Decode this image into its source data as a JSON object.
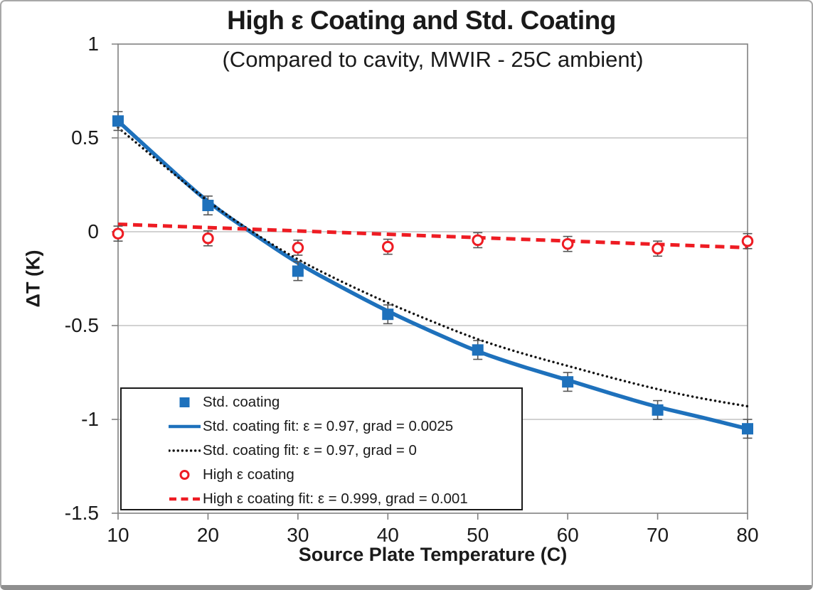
{
  "chart_data": {
    "type": "scatter",
    "title": "High ε Coating and Std. Coating",
    "subtitle": "(Compared to cavity, MWIR - 25C ambient)",
    "xlabel": "Source Plate Temperature (C)",
    "ylabel": "ΔT (K)",
    "xlim": [
      10,
      80
    ],
    "ylim": [
      -1.5,
      1
    ],
    "xticks": [
      "10",
      "20",
      "30",
      "40",
      "50",
      "60",
      "70",
      "80"
    ],
    "yticks": [
      "1",
      "0.5",
      "0",
      "-0.5",
      "-1",
      "-1.5"
    ],
    "grid": "horizontal-major",
    "legend_position": "inside-bottom-left",
    "colors": {
      "std_blue": "#1e71bc",
      "high_red": "#ee1c23",
      "fit_black": "#111111",
      "gridline": "#c3c3c3",
      "axis": "#808080",
      "error_bar": "#555555",
      "legend_border": "#1a1a1a"
    },
    "series": [
      {
        "name": "Std. coating",
        "kind": "scatter",
        "marker": "filled-square",
        "color": "#1e71bc",
        "x": [
          10,
          20,
          30,
          40,
          50,
          60,
          70,
          80
        ],
        "y": [
          0.59,
          0.14,
          -0.21,
          -0.44,
          -0.63,
          -0.8,
          -0.95,
          -1.05
        ],
        "yerr": 0.05
      },
      {
        "name": "Std. coating fit: ε = 0.97, grad = 0.0025",
        "kind": "line",
        "style": "solid",
        "color": "#1e71bc",
        "x": [
          10,
          15,
          20,
          25,
          30,
          35,
          40,
          45,
          50,
          55,
          60,
          65,
          70,
          75,
          80
        ],
        "y": [
          0.59,
          0.37,
          0.155,
          -0.01,
          -0.17,
          -0.3,
          -0.425,
          -0.535,
          -0.64,
          -0.72,
          -0.79,
          -0.865,
          -0.935,
          -0.99,
          -1.05
        ]
      },
      {
        "name": "Std. coating fit: ε = 0.97, grad = 0",
        "kind": "line",
        "style": "dotted",
        "color": "#111111",
        "x": [
          10,
          15,
          20,
          25,
          30,
          35,
          40,
          45,
          50,
          55,
          60,
          65,
          70,
          75,
          80
        ],
        "y": [
          0.555,
          0.355,
          0.16,
          -0.005,
          -0.15,
          -0.27,
          -0.38,
          -0.48,
          -0.575,
          -0.65,
          -0.715,
          -0.78,
          -0.84,
          -0.89,
          -0.93
        ]
      },
      {
        "name": "High ε coating",
        "kind": "scatter",
        "marker": "open-circle",
        "color": "#ee1c23",
        "x": [
          10,
          20,
          30,
          40,
          50,
          60,
          70,
          80
        ],
        "y": [
          -0.01,
          -0.035,
          -0.085,
          -0.08,
          -0.045,
          -0.065,
          -0.09,
          -0.05
        ],
        "yerr": 0.04
      },
      {
        "name": "High ε coating fit: ε = 0.999, grad = 0.001",
        "kind": "line",
        "style": "dashed",
        "color": "#ee1c23",
        "x": [
          10,
          80
        ],
        "y": [
          0.04,
          -0.085
        ]
      }
    ]
  }
}
